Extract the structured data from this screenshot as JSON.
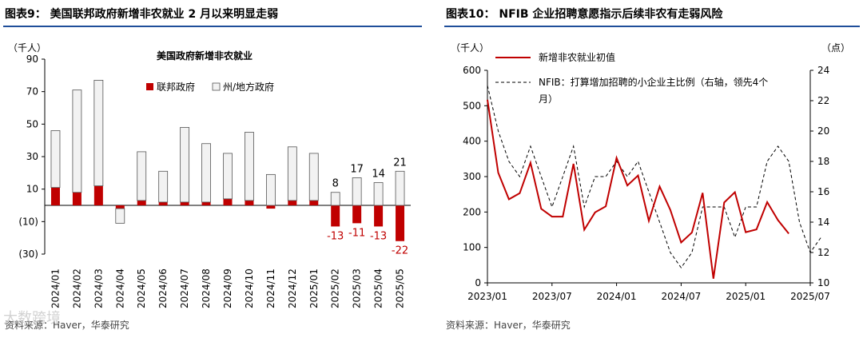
{
  "left": {
    "title": "图表9： 美国联邦政府新增非农就业 2 月以来明显走弱",
    "source": "资料来源：Haver，华泰研究",
    "chart_data": {
      "type": "bar",
      "stacked": true,
      "title": "美国政府新增非农就业",
      "ylabel": "（千人）",
      "ylim": [
        -30,
        90
      ],
      "yticks": [
        -30,
        -10,
        10,
        30,
        50,
        70,
        90
      ],
      "ytick_labels": [
        "(30)",
        "(10)",
        "10",
        "30",
        "50",
        "70",
        "90"
      ],
      "categories": [
        "2024/01",
        "2024/02",
        "2024/03",
        "2024/04",
        "2024/05",
        "2024/06",
        "2024/07",
        "2024/08",
        "2024/09",
        "2024/10",
        "2024/11",
        "2024/12",
        "2025/01",
        "2025/02",
        "2025/03",
        "2025/04",
        "2025/05"
      ],
      "series": [
        {
          "name": "联邦政府",
          "color": "#c00000",
          "values": [
            11,
            8,
            12,
            -2,
            3,
            2,
            2,
            2,
            4,
            3,
            -2,
            3,
            3,
            -13,
            -11,
            -13,
            -22
          ]
        },
        {
          "name": "州/地方政府",
          "color": "#f2f2f2",
          "values": [
            35,
            63,
            65,
            -9,
            30,
            19,
            46,
            36,
            28,
            42,
            19,
            33,
            29,
            8,
            17,
            14,
            21
          ]
        }
      ],
      "legend": "top-right",
      "annotations": [
        {
          "category": "2025/02",
          "text": "8",
          "color": "#000000",
          "pos": "above"
        },
        {
          "category": "2025/03",
          "text": "17",
          "color": "#000000",
          "pos": "above"
        },
        {
          "category": "2025/04",
          "text": "14",
          "color": "#000000",
          "pos": "above"
        },
        {
          "category": "2025/05",
          "text": "21",
          "color": "#000000",
          "pos": "above"
        },
        {
          "category": "2025/02",
          "text": "-13",
          "color": "#c00000",
          "pos": "below"
        },
        {
          "category": "2025/03",
          "text": "-11",
          "color": "#c00000",
          "pos": "below"
        },
        {
          "category": "2025/04",
          "text": "-13",
          "color": "#c00000",
          "pos": "below"
        },
        {
          "category": "2025/05",
          "text": "-22",
          "color": "#c00000",
          "pos": "below"
        }
      ]
    }
  },
  "right": {
    "title": "图表10： NFIB 企业招聘意愿指示后续非农有走弱风险",
    "source": "资料来源：Haver，华泰研究",
    "chart_data": {
      "type": "line",
      "ylabel_left": "（千人）",
      "ylabel_right": "（点）",
      "ylim_left": [
        0,
        600
      ],
      "yticks_left": [
        0,
        100,
        200,
        300,
        400,
        500,
        600
      ],
      "ylim_right": [
        10,
        24
      ],
      "yticks_right": [
        10,
        12,
        14,
        16,
        18,
        20,
        22,
        24
      ],
      "x_start": "2023/01",
      "x_end": "2025/07",
      "xtick_labels": [
        "2023/01",
        "2023/07",
        "2024/01",
        "2024/07",
        "2025/01",
        "2025/07"
      ],
      "legend": "top-left",
      "series": [
        {
          "name": "新增非农就业初值",
          "axis": "left",
          "color": "#c00000",
          "style": "solid",
          "values": [
            517,
            311,
            236,
            253,
            339,
            209,
            187,
            187,
            336,
            150,
            199,
            216,
            353,
            275,
            303,
            175,
            272,
            206,
            114,
            142,
            254,
            12,
            227,
            256,
            143,
            151,
            228,
            177,
            139
          ]
        },
        {
          "name": "NFIB：打算增加招聘的小企业主比例（右轴，领先4个月）",
          "axis": "right",
          "color": "#000000",
          "style": "dashed",
          "values": [
            23,
            20,
            18,
            17,
            19,
            17,
            15,
            17,
            19,
            15,
            17,
            17,
            18,
            17,
            18,
            16,
            14,
            12,
            11,
            12,
            15,
            15,
            15,
            13,
            15,
            15,
            18,
            19,
            18,
            14,
            12,
            13
          ]
        }
      ]
    }
  },
  "watermark": "大数跨境"
}
